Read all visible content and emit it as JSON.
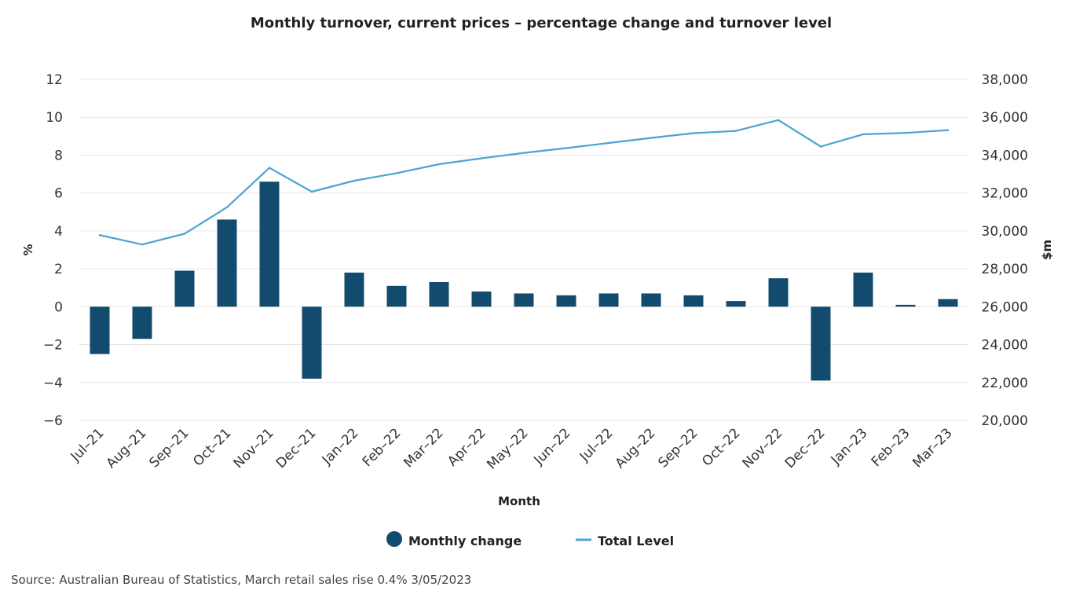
{
  "chart_data": {
    "type": "bar+line",
    "title": "Monthly turnover, current prices – percentage change and turnover level",
    "xlabel": "Month",
    "ylabel_left": "%",
    "ylabel_right": "$m",
    "categories": [
      "Jul-21",
      "Aug-21",
      "Sep-21",
      "Oct-21",
      "Nov-21",
      "Dec-21",
      "Jan-22",
      "Feb-22",
      "Mar-22",
      "Apr-22",
      "May-22",
      "Jun-22",
      "Jul-22",
      "Aug-22",
      "Sep-22",
      "Oct-22",
      "Nov-22",
      "Dec-22",
      "Jan-23",
      "Feb-23",
      "Mar-23"
    ],
    "category_labels": [
      "Jul–21",
      "Aug–21",
      "Sep–21",
      "Oct–21",
      "Nov–21",
      "Dec–21",
      "Jan–22",
      "Feb–22",
      "Mar–22",
      "Apr–22",
      "May–22",
      "Jun–22",
      "Jul–22",
      "Aug–22",
      "Sep–22",
      "Oct–22",
      "Nov–22",
      "Dec–22",
      "Jan–23",
      "Feb–23",
      "Mar–23"
    ],
    "ylim_left": [
      -6,
      12
    ],
    "yticks_left": [
      -6,
      -4,
      -2,
      0,
      2,
      4,
      6,
      8,
      10,
      12
    ],
    "ytick_labels_left": [
      "−6",
      "−4",
      "−2",
      "0",
      "2",
      "4",
      "6",
      "8",
      "10",
      "12"
    ],
    "ylim_right": [
      20000,
      38000
    ],
    "yticks_right": [
      20000,
      22000,
      24000,
      26000,
      28000,
      30000,
      32000,
      34000,
      36000,
      38000
    ],
    "ytick_labels_right": [
      "20,000",
      "22,000",
      "24,000",
      "26,000",
      "28,000",
      "30,000",
      "32,000",
      "34,000",
      "36,000",
      "38,000"
    ],
    "grid": true,
    "series": [
      {
        "name": "Monthly change",
        "type": "bar",
        "axis": "left",
        "color": "#134b6e",
        "values": [
          -2.5,
          -1.7,
          1.9,
          4.6,
          6.6,
          -3.8,
          1.8,
          1.1,
          1.3,
          0.8,
          0.7,
          0.6,
          0.7,
          0.7,
          0.6,
          0.3,
          1.5,
          -3.9,
          1.8,
          0.1,
          0.4
        ]
      },
      {
        "name": "Total Level",
        "type": "line",
        "axis": "right",
        "color": "#4ba3d6",
        "values": [
          29780,
          29280,
          29850,
          31250,
          33330,
          32070,
          32650,
          33050,
          33520,
          33830,
          34120,
          34370,
          34640,
          34910,
          35160,
          35280,
          35850,
          34450,
          35100,
          35170,
          35320
        ]
      }
    ],
    "legend_position": "bottom-center",
    "source": "Source: Australian Bureau of Statistics, March retail sales rise 0.4% 3/05/2023"
  }
}
